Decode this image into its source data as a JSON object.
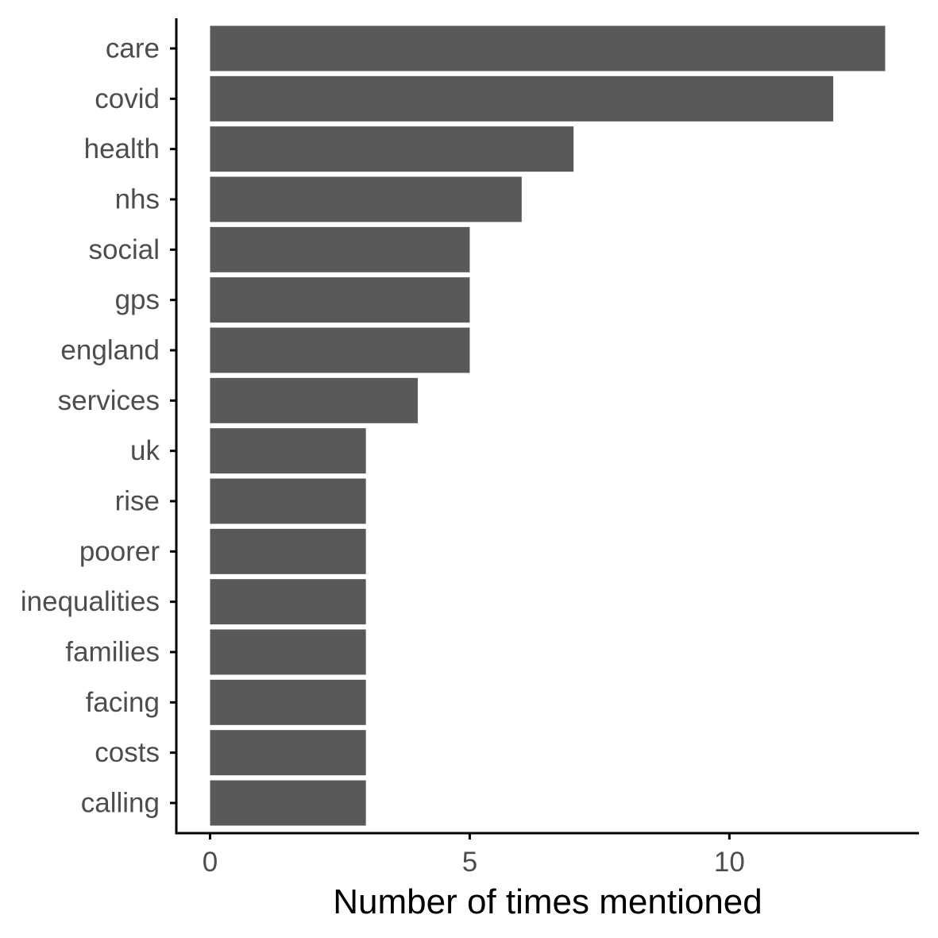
{
  "chart_data": {
    "type": "bar",
    "orientation": "horizontal",
    "categories": [
      "care",
      "covid",
      "health",
      "nhs",
      "social",
      "gps",
      "england",
      "services",
      "uk",
      "rise",
      "poorer",
      "inequalities",
      "families",
      "facing",
      "costs",
      "calling"
    ],
    "values": [
      13,
      12,
      7,
      6,
      5,
      5,
      5,
      4,
      3,
      3,
      3,
      3,
      3,
      3,
      3,
      3
    ],
    "xlabel": "Number of times mentioned",
    "ylabel": "",
    "title": "",
    "xlim": [
      -0.65,
      13.65
    ],
    "xticks": [
      0,
      5,
      10
    ],
    "xtick_labels": [
      "0",
      "5",
      "10"
    ],
    "grid": false,
    "legend": "none",
    "colors": {
      "bar": "#595959",
      "axis": "#000000",
      "tick_label": "#4d4d4d",
      "background": "#ffffff"
    }
  }
}
